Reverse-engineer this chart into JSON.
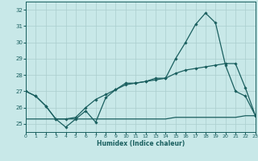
{
  "xlabel": "Humidex (Indice chaleur)",
  "bg_color": "#c8e8e8",
  "grid_color": "#aacece",
  "line_color": "#1a5f5f",
  "xlim": [
    0,
    23
  ],
  "ylim": [
    24.5,
    32.5
  ],
  "yticks": [
    25,
    26,
    27,
    28,
    29,
    30,
    31,
    32
  ],
  "xticks": [
    0,
    1,
    2,
    3,
    4,
    5,
    6,
    7,
    8,
    9,
    10,
    11,
    12,
    13,
    14,
    15,
    16,
    17,
    18,
    19,
    20,
    21,
    22,
    23
  ],
  "line1_x": [
    0,
    1,
    2,
    3,
    4,
    5,
    6,
    7,
    8,
    9,
    10,
    11,
    12,
    13,
    14,
    15,
    16,
    17,
    18,
    19,
    20,
    21,
    22,
    23
  ],
  "line1_y": [
    27.0,
    26.7,
    26.1,
    25.3,
    24.8,
    25.3,
    25.8,
    25.1,
    26.6,
    27.1,
    27.5,
    27.5,
    27.6,
    27.8,
    27.8,
    29.0,
    30.0,
    31.1,
    31.8,
    31.2,
    28.6,
    27.0,
    26.7,
    25.5
  ],
  "line2_x": [
    0,
    1,
    2,
    3,
    4,
    5,
    6,
    7,
    8,
    9,
    10,
    11,
    12,
    13,
    14,
    15,
    16,
    17,
    18,
    19,
    20,
    21,
    22,
    23
  ],
  "line2_y": [
    27.0,
    26.7,
    26.1,
    25.3,
    25.3,
    25.4,
    26.0,
    26.5,
    26.8,
    27.1,
    27.4,
    27.5,
    27.6,
    27.7,
    27.8,
    28.1,
    28.3,
    28.4,
    28.5,
    28.6,
    28.7,
    28.7,
    27.2,
    25.5
  ],
  "line3_x": [
    0,
    1,
    2,
    3,
    4,
    5,
    6,
    7,
    8,
    9,
    10,
    11,
    12,
    13,
    14,
    15,
    16,
    17,
    18,
    19,
    20,
    21,
    22,
    23
  ],
  "line3_y": [
    25.3,
    25.3,
    25.3,
    25.3,
    25.3,
    25.3,
    25.3,
    25.3,
    25.3,
    25.3,
    25.3,
    25.3,
    25.3,
    25.3,
    25.3,
    25.4,
    25.4,
    25.4,
    25.4,
    25.4,
    25.4,
    25.4,
    25.5,
    25.5
  ]
}
